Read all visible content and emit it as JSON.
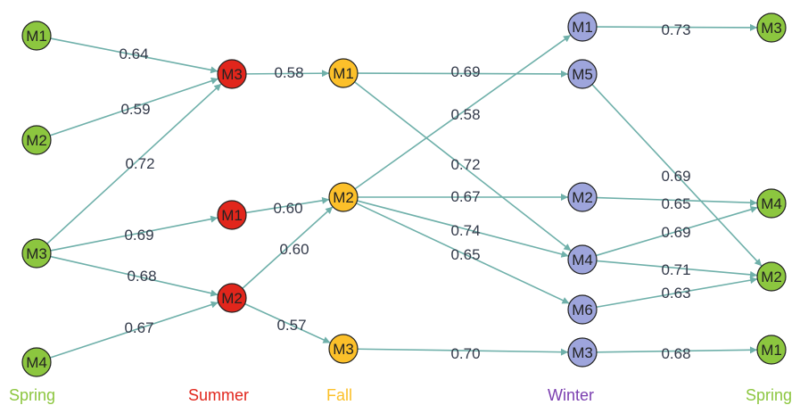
{
  "colors": {
    "spring": "#8cc63f",
    "summer": "#e1261c",
    "fall": "#fcc02a",
    "winter": "#9ea5dc",
    "winter_text": "#7b3fb0",
    "edge": "#6fb0aa"
  },
  "seasons": [
    {
      "id": "spring1",
      "label": "Spring",
      "color": "#8cc63f"
    },
    {
      "id": "summer",
      "label": "Summer",
      "color": "#e1261c"
    },
    {
      "id": "fall",
      "label": "Fall",
      "color": "#fcc02a"
    },
    {
      "id": "winter",
      "label": "Winter",
      "color": "#7b3fb0"
    },
    {
      "id": "spring2",
      "label": "Spring",
      "color": "#8cc63f"
    }
  ],
  "nodes": [
    {
      "id": "sp1_M1",
      "label": "M1",
      "season": "spring"
    },
    {
      "id": "sp1_M2",
      "label": "M2",
      "season": "spring"
    },
    {
      "id": "sp1_M3",
      "label": "M3",
      "season": "spring"
    },
    {
      "id": "sp1_M4",
      "label": "M4",
      "season": "spring"
    },
    {
      "id": "su_M3",
      "label": "M3",
      "season": "summer"
    },
    {
      "id": "su_M1",
      "label": "M1",
      "season": "summer"
    },
    {
      "id": "su_M2",
      "label": "M2",
      "season": "summer"
    },
    {
      "id": "fa_M1",
      "label": "M1",
      "season": "fall"
    },
    {
      "id": "fa_M2",
      "label": "M2",
      "season": "fall"
    },
    {
      "id": "fa_M3",
      "label": "M3",
      "season": "fall"
    },
    {
      "id": "wi_M1",
      "label": "M1",
      "season": "winter"
    },
    {
      "id": "wi_M5",
      "label": "M5",
      "season": "winter"
    },
    {
      "id": "wi_M2",
      "label": "M2",
      "season": "winter"
    },
    {
      "id": "wi_M4",
      "label": "M4",
      "season": "winter"
    },
    {
      "id": "wi_M6",
      "label": "M6",
      "season": "winter"
    },
    {
      "id": "wi_M3",
      "label": "M3",
      "season": "winter"
    },
    {
      "id": "sp2_M3",
      "label": "M3",
      "season": "spring"
    },
    {
      "id": "sp2_M4",
      "label": "M4",
      "season": "spring"
    },
    {
      "id": "sp2_M2",
      "label": "M2",
      "season": "spring"
    },
    {
      "id": "sp2_M1",
      "label": "M1",
      "season": "spring"
    }
  ],
  "edges": [
    {
      "from": "sp1_M1",
      "to": "su_M3",
      "weight": "0.64"
    },
    {
      "from": "sp1_M2",
      "to": "su_M3",
      "weight": "0.59"
    },
    {
      "from": "sp1_M3",
      "to": "su_M3",
      "weight": "0.72"
    },
    {
      "from": "sp1_M3",
      "to": "su_M1",
      "weight": "0.69"
    },
    {
      "from": "sp1_M3",
      "to": "su_M2",
      "weight": "0.68"
    },
    {
      "from": "sp1_M4",
      "to": "su_M2",
      "weight": "0.67"
    },
    {
      "from": "su_M3",
      "to": "fa_M1",
      "weight": "0.58"
    },
    {
      "from": "su_M1",
      "to": "fa_M2",
      "weight": "0.60"
    },
    {
      "from": "su_M2",
      "to": "fa_M2",
      "weight": "0.60"
    },
    {
      "from": "su_M2",
      "to": "fa_M3",
      "weight": "0.57"
    },
    {
      "from": "fa_M1",
      "to": "wi_M5",
      "weight": "0.69"
    },
    {
      "from": "fa_M1",
      "to": "wi_M4",
      "weight": "0.72"
    },
    {
      "from": "fa_M2",
      "to": "wi_M1",
      "weight": "0.58"
    },
    {
      "from": "fa_M2",
      "to": "wi_M2",
      "weight": "0.67"
    },
    {
      "from": "fa_M2",
      "to": "wi_M4",
      "weight": "0.74"
    },
    {
      "from": "fa_M2",
      "to": "wi_M6",
      "weight": "0.65"
    },
    {
      "from": "fa_M3",
      "to": "wi_M3",
      "weight": "0.70"
    },
    {
      "from": "wi_M1",
      "to": "sp2_M3",
      "weight": "0.73"
    },
    {
      "from": "wi_M5",
      "to": "sp2_M2",
      "weight": "0.69"
    },
    {
      "from": "wi_M2",
      "to": "sp2_M4",
      "weight": "0.65"
    },
    {
      "from": "wi_M4",
      "to": "sp2_M4",
      "weight": "0.69"
    },
    {
      "from": "wi_M4",
      "to": "sp2_M2",
      "weight": "0.71"
    },
    {
      "from": "wi_M6",
      "to": "sp2_M2",
      "weight": "0.63"
    },
    {
      "from": "wi_M3",
      "to": "sp2_M1",
      "weight": "0.68"
    }
  ]
}
